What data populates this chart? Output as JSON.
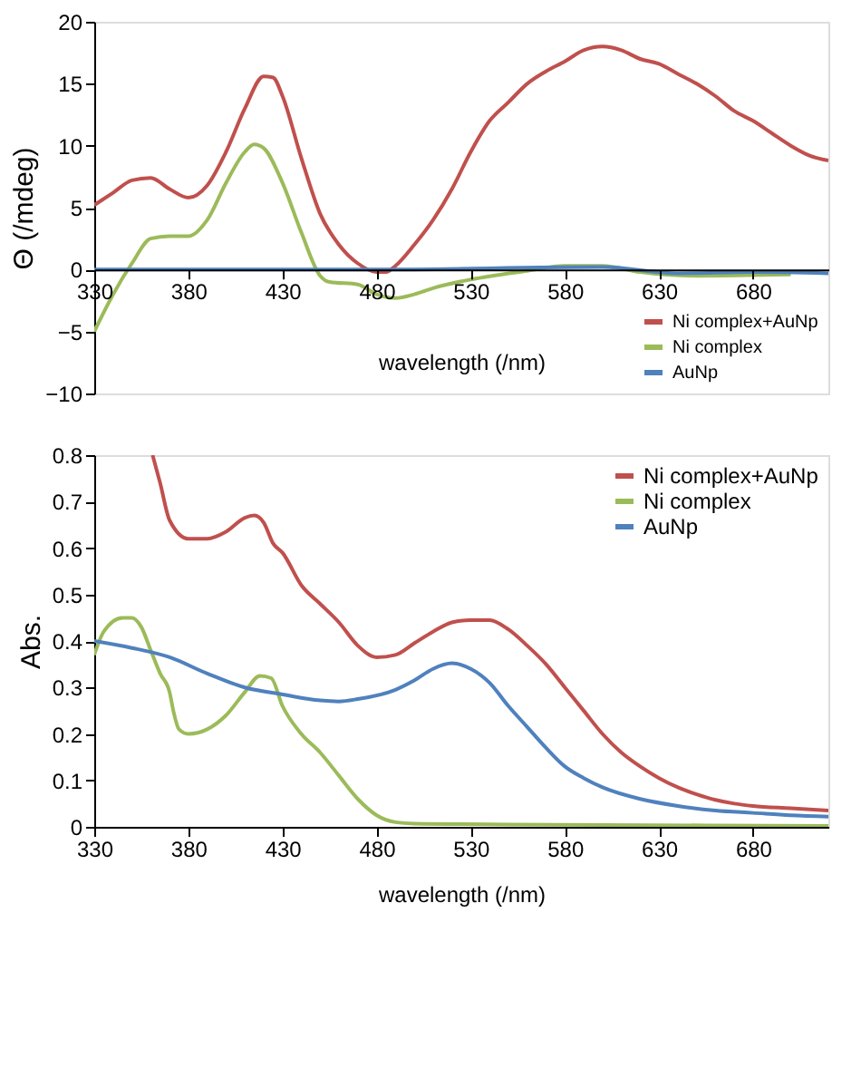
{
  "chart_data": [
    {
      "type": "line",
      "xlabel": "wavelength (/nm)",
      "ylabel": "Θ (/mdeg)",
      "xlim": [
        330,
        720
      ],
      "xticks": [
        330,
        380,
        430,
        480,
        530,
        580,
        630,
        680
      ],
      "ylim": [
        -10,
        20
      ],
      "yticks": [
        -10,
        -5,
        0,
        5,
        10,
        15,
        20
      ],
      "grid": false,
      "legend": "bottom right",
      "series": [
        {
          "name": "Ni complex+AuNp",
          "color": "#c0504d",
          "x": [
            330,
            340,
            350,
            360,
            370,
            380,
            390,
            400,
            410,
            420,
            425,
            430,
            440,
            450,
            460,
            470,
            480,
            485,
            490,
            500,
            510,
            520,
            530,
            540,
            550,
            560,
            570,
            580,
            590,
            600,
            610,
            620,
            630,
            640,
            650,
            660,
            670,
            680,
            690,
            700,
            710,
            720
          ],
          "values": [
            5.2,
            6.2,
            7.2,
            7.4,
            6.5,
            5.8,
            6.8,
            9.5,
            13,
            15.6,
            15.5,
            14,
            9,
            4.5,
            2,
            0.5,
            -0.2,
            -0.2,
            0.3,
            2,
            4,
            6.5,
            9.5,
            12,
            13.5,
            15,
            16,
            16.8,
            17.7,
            18,
            17.7,
            17,
            16.6,
            15.8,
            15,
            14,
            12.8,
            12,
            11,
            10,
            9.2,
            8.8
          ]
        },
        {
          "name": "Ni complex",
          "color": "#9bbb59",
          "x": [
            330,
            340,
            350,
            360,
            370,
            380,
            390,
            400,
            410,
            415,
            420,
            430,
            440,
            450,
            455,
            470,
            480,
            490,
            500,
            510,
            530,
            560,
            580,
            600,
            620,
            650,
            700
          ],
          "values": [
            -5,
            -2,
            0.5,
            2.5,
            2.7,
            2.7,
            4,
            7,
            9.5,
            10.1,
            9.8,
            7,
            3,
            -0.5,
            -1,
            -1.2,
            -2,
            -2.3,
            -2,
            -1.5,
            -0.8,
            -0.1,
            0.3,
            0.3,
            -0.2,
            -0.5,
            -0.4
          ]
        },
        {
          "name": "AuNp",
          "color": "#4f81bd",
          "x": [
            330,
            400,
            480,
            600,
            640,
            680,
            720
          ],
          "values": [
            0,
            0,
            0,
            0.2,
            -0.3,
            -0.2,
            -0.3
          ]
        }
      ]
    },
    {
      "type": "line",
      "xlabel": "wavelength (/nm)",
      "ylabel": "Abs.",
      "xlim": [
        330,
        720
      ],
      "xticks": [
        330,
        380,
        430,
        480,
        530,
        580,
        630,
        680
      ],
      "ylim": [
        0,
        0.8
      ],
      "yticks": [
        {
          "value": 0,
          "label": "0"
        },
        0.1,
        0.2,
        0.3,
        0.4,
        0.5,
        0.6,
        0.7,
        0.8
      ],
      "grid": false,
      "legend": "top right",
      "series": [
        {
          "name": "Ni complex+AuNp",
          "color": "#c0504d",
          "x": [
            361,
            365,
            370,
            380,
            390,
            400,
            410,
            415,
            420,
            425,
            430,
            440,
            450,
            460,
            470,
            480,
            490,
            500,
            510,
            520,
            530,
            540,
            550,
            560,
            570,
            580,
            590,
            600,
            610,
            620,
            630,
            640,
            650,
            660,
            670,
            680,
            700,
            720
          ],
          "values": [
            0.8,
            0.74,
            0.66,
            0.62,
            0.62,
            0.635,
            0.665,
            0.67,
            0.655,
            0.61,
            0.59,
            0.52,
            0.48,
            0.44,
            0.39,
            0.365,
            0.37,
            0.395,
            0.42,
            0.44,
            0.445,
            0.445,
            0.425,
            0.39,
            0.35,
            0.3,
            0.25,
            0.2,
            0.16,
            0.13,
            0.105,
            0.085,
            0.07,
            0.058,
            0.05,
            0.045,
            0.04,
            0.035
          ]
        },
        {
          "name": "Ni complex",
          "color": "#9bbb59",
          "x": [
            330,
            335,
            345,
            350,
            355,
            360,
            365,
            370,
            372,
            375,
            380,
            390,
            400,
            410,
            418,
            424,
            430,
            440,
            450,
            460,
            470,
            480,
            490,
            500,
            550,
            600,
            720
          ],
          "values": [
            0.37,
            0.42,
            0.45,
            0.45,
            0.43,
            0.38,
            0.33,
            0.29,
            0.25,
            0.21,
            0.2,
            0.21,
            0.24,
            0.29,
            0.325,
            0.32,
            0.26,
            0.2,
            0.16,
            0.11,
            0.06,
            0.025,
            0.01,
            0.007,
            0.005,
            0.004,
            0.002
          ]
        },
        {
          "name": "AuNp",
          "color": "#4f81bd",
          "x": [
            330,
            350,
            370,
            390,
            410,
            430,
            450,
            460,
            470,
            490,
            500,
            510,
            520,
            530,
            540,
            550,
            560,
            570,
            580,
            590,
            600,
            620,
            640,
            660,
            680,
            700,
            720
          ],
          "values": [
            0.4,
            0.385,
            0.365,
            0.33,
            0.3,
            0.285,
            0.272,
            0.27,
            0.275,
            0.295,
            0.315,
            0.34,
            0.352,
            0.34,
            0.31,
            0.26,
            0.215,
            0.17,
            0.13,
            0.105,
            0.085,
            0.06,
            0.045,
            0.035,
            0.03,
            0.025,
            0.022
          ]
        }
      ]
    }
  ]
}
